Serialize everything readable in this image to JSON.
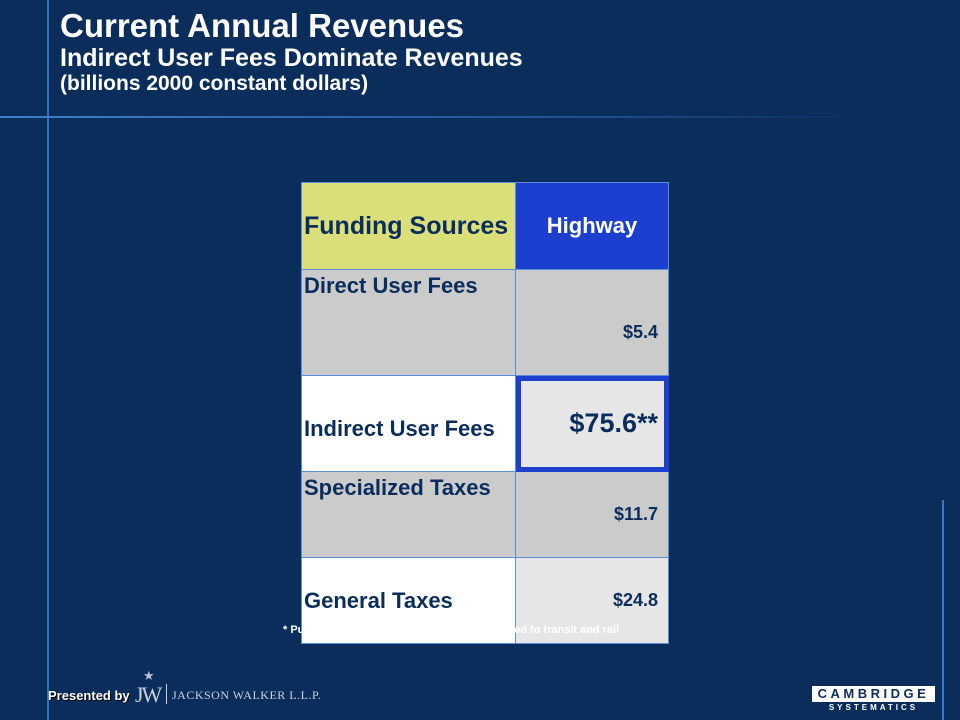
{
  "header": {
    "title": "Current Annual Revenues",
    "subtitle": "Indirect User Fees Dominate Revenues",
    "unit_note": "(billions 2000 constant dollars)"
  },
  "table": {
    "col_source": "Funding Sources",
    "col_highway": "Highway",
    "rows": [
      {
        "source": "Direct User Fees",
        "highway": "$5.4"
      },
      {
        "source": "Indirect User Fees",
        "highway": "$75.6**"
      },
      {
        "source": "Specialized Taxes",
        "highway": "$11.7"
      },
      {
        "source": "General Taxes",
        "highway": "$24.8"
      }
    ]
  },
  "footnote": "* Public sector only   ** Less revenue allocated to transit and rail",
  "footer": {
    "presented_by": "Presented by",
    "sponsor_mark": "JW",
    "sponsor_name": "JACKSON WALKER L.L.P.",
    "logo_top": "CAMBRIDGE",
    "logo_bottom": "SYSTEMATICS"
  },
  "colors": {
    "background": "#0b2d5c",
    "header_source": "#dadf7a",
    "header_highway": "#1c3fcf",
    "highlight_border": "#1c3fcf"
  }
}
